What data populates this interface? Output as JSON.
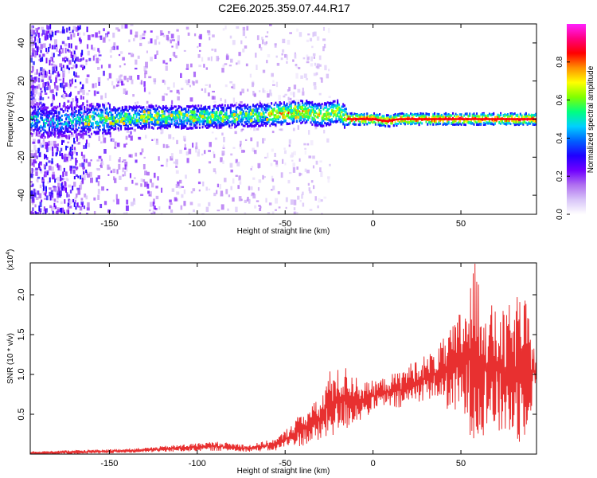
{
  "title": "C2E6.2025.359.07.44.R17",
  "chart_data": [
    {
      "type": "heatmap",
      "title": "C2E6.2025.359.07.44.R17",
      "xlabel": "Height of straight line (km)",
      "ylabel": "Frequency (Hz)",
      "xlim": [
        -195,
        93
      ],
      "ylim": [
        -50,
        50
      ],
      "xticks": [
        -150,
        -100,
        -50,
        0,
        50
      ],
      "yticks": [
        -40,
        -20,
        0,
        20,
        40
      ],
      "colorbar": {
        "label": "Normalized spectral amplitude",
        "range": [
          0,
          1
        ],
        "ticks": [
          "0.0",
          "0.2",
          "0.4",
          "0.6",
          "0.8"
        ],
        "tick_values": [
          0.0,
          0.2,
          0.4,
          0.6,
          0.8
        ],
        "colors": [
          "#ffffff",
          "#d8c4f8",
          "#b070f0",
          "#7000ff",
          "#2000ff",
          "#0060ff",
          "#00d0ff",
          "#00ff80",
          "#80ff00",
          "#ffff00",
          "#ff9000",
          "#ff0000",
          "#ff0080",
          "#ff20ff"
        ]
      },
      "band_center_hz": [
        {
          "x": -190,
          "y": -2
        },
        {
          "x": -160,
          "y": 0
        },
        {
          "x": -130,
          "y": 1
        },
        {
          "x": -100,
          "y": 1
        },
        {
          "x": -70,
          "y": 2
        },
        {
          "x": -50,
          "y": 3
        },
        {
          "x": -40,
          "y": 4
        },
        {
          "x": -30,
          "y": 2
        },
        {
          "x": -20,
          "y": 4
        },
        {
          "x": -15,
          "y": 0
        },
        {
          "x": 0,
          "y": 0
        },
        {
          "x": 8,
          "y": -1
        },
        {
          "x": 15,
          "y": 0
        },
        {
          "x": 50,
          "y": 0
        },
        {
          "x": 93,
          "y": 0
        }
      ]
    },
    {
      "type": "line",
      "xlabel": "Height of straight line (km)",
      "ylabel": "SNR (10 * v/v)",
      "y_multiplier_label": "(x10",
      "y_multiplier_exp": "4",
      "xlim": [
        -195,
        93
      ],
      "ylim": [
        0,
        2.4
      ],
      "xticks": [
        -150,
        -100,
        -50,
        0,
        50
      ],
      "yticks": [
        "0.5",
        "1.0",
        "1.5",
        "2.0"
      ],
      "ytick_values": [
        0.5,
        1.0,
        1.5,
        2.0
      ],
      "line_color": "#e83030",
      "series": [
        {
          "name": "SNR",
          "envelope": [
            {
              "x": -195,
              "lo": 0.0,
              "hi": 0.03
            },
            {
              "x": -170,
              "lo": 0.0,
              "hi": 0.05
            },
            {
              "x": -150,
              "lo": 0.01,
              "hi": 0.06
            },
            {
              "x": -130,
              "lo": 0.02,
              "hi": 0.08
            },
            {
              "x": -110,
              "lo": 0.03,
              "hi": 0.12
            },
            {
              "x": -90,
              "lo": 0.04,
              "hi": 0.16
            },
            {
              "x": -70,
              "lo": 0.03,
              "hi": 0.12
            },
            {
              "x": -55,
              "lo": 0.04,
              "hi": 0.2
            },
            {
              "x": -50,
              "lo": 0.08,
              "hi": 0.3
            },
            {
              "x": -40,
              "lo": 0.1,
              "hi": 0.55
            },
            {
              "x": -30,
              "lo": 0.15,
              "hi": 0.7
            },
            {
              "x": -25,
              "lo": 0.2,
              "hi": 1.05
            },
            {
              "x": -15,
              "lo": 0.3,
              "hi": 1.1
            },
            {
              "x": -5,
              "lo": 0.45,
              "hi": 0.9
            },
            {
              "x": 5,
              "lo": 0.6,
              "hi": 0.95
            },
            {
              "x": 15,
              "lo": 0.55,
              "hi": 1.05
            },
            {
              "x": 25,
              "lo": 0.65,
              "hi": 1.2
            },
            {
              "x": 35,
              "lo": 0.7,
              "hi": 1.3
            },
            {
              "x": 45,
              "lo": 0.5,
              "hi": 1.6
            },
            {
              "x": 52,
              "lo": 0.4,
              "hi": 1.95
            },
            {
              "x": 58,
              "lo": 0.1,
              "hi": 2.4
            },
            {
              "x": 65,
              "lo": 0.3,
              "hi": 1.9
            },
            {
              "x": 75,
              "lo": 0.2,
              "hi": 1.8
            },
            {
              "x": 85,
              "lo": 0.1,
              "hi": 2.1
            },
            {
              "x": 93,
              "lo": 0.8,
              "hi": 1.25
            }
          ]
        }
      ]
    }
  ]
}
